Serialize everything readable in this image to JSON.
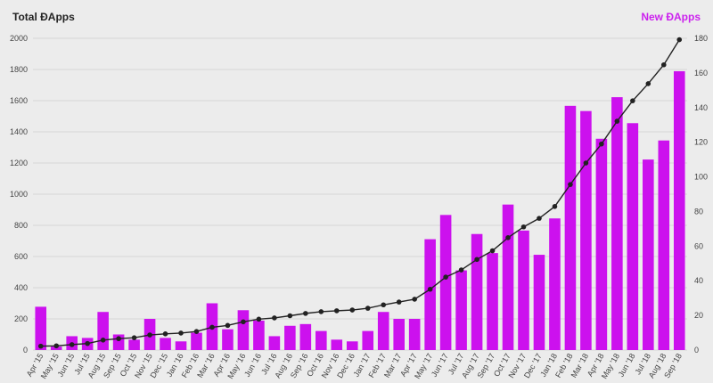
{
  "chart_data": {
    "type": "bar",
    "title_left": "Total ĐApps",
    "title_right": "New ĐApps",
    "colors": {
      "bar": "#cc11ee",
      "line": "#222222",
      "grid": "#d6d6d6"
    },
    "left_axis": {
      "min": 0,
      "max": 2000,
      "ticks": [
        "0",
        "200",
        "400",
        "600",
        "800",
        "1000",
        "1200",
        "1400",
        "1600",
        "1800",
        "2000"
      ]
    },
    "right_axis": {
      "min": 0,
      "max": 180,
      "ticks": [
        "0",
        "20",
        "40",
        "60",
        "80",
        "100",
        "120",
        "140",
        "160",
        "180"
      ]
    },
    "categories": [
      "Apr '15",
      "May '15",
      "Jun '15",
      "Jul '15",
      "Aug '15",
      "Sep '15",
      "Oct '15",
      "Nov '15",
      "Dec '15",
      "Jan '16",
      "Feb '16",
      "Mar '16",
      "Apr '16",
      "May '16",
      "Jun '16",
      "Jul '16",
      "Aug '16",
      "Sep '16",
      "Oct '16",
      "Nov '16",
      "Dec '16",
      "Jan '17",
      "Feb '17",
      "Mar '17",
      "Apr '17",
      "May '17",
      "Jun '17",
      "Jul '17",
      "Aug '17",
      "Sep '17",
      "Oct '17",
      "Nov '17",
      "Dec '17",
      "Jan '18",
      "Feb '18",
      "Mar '18",
      "Apr '18",
      "May '18",
      "Jun '18",
      "Jul '18",
      "Aug '18",
      "Sep '18"
    ],
    "series": [
      {
        "name": "New ĐApps",
        "axis": "right",
        "type": "bar",
        "values": [
          25,
          2,
          8,
          7,
          22,
          9,
          6,
          18,
          7,
          5,
          10,
          27,
          12,
          23,
          17,
          8,
          14,
          15,
          11,
          6,
          5,
          11,
          22,
          18,
          18,
          64,
          78,
          46,
          67,
          56,
          84,
          69,
          55,
          76,
          141,
          138,
          122,
          146,
          131,
          110,
          121,
          161
        ]
      },
      {
        "name": "Total ĐApps",
        "axis": "left",
        "type": "line",
        "values": [
          25,
          27,
          35,
          42,
          64,
          73,
          79,
          97,
          104,
          109,
          119,
          146,
          158,
          181,
          198,
          206,
          220,
          235,
          246,
          252,
          257,
          268,
          290,
          308,
          326,
          390,
          468,
          514,
          581,
          637,
          721,
          790,
          845,
          921,
          1062,
          1200,
          1322,
          1468,
          1599,
          1709,
          1830,
          1991
        ]
      }
    ]
  }
}
